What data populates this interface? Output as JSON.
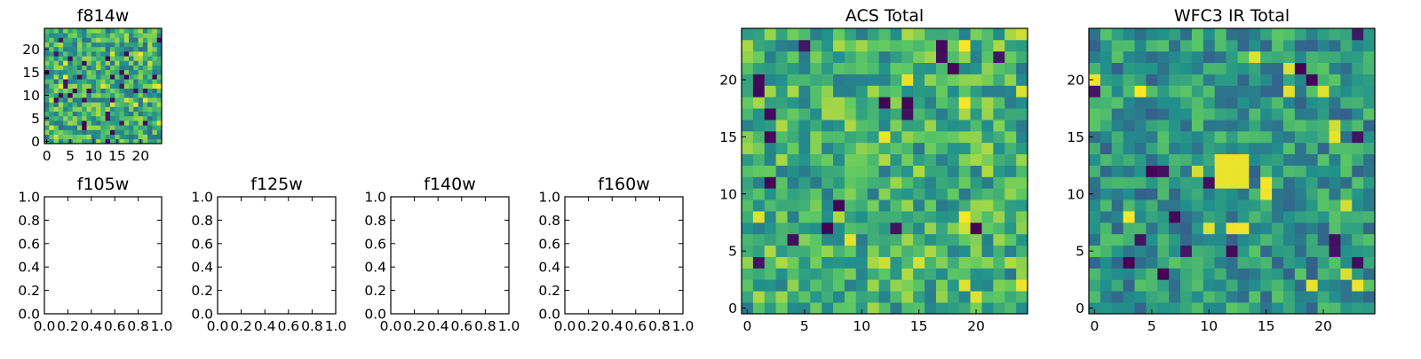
{
  "colormap": [
    "#440154",
    "#3b528b",
    "#21918c",
    "#5ec962",
    "#fde725"
  ],
  "chart_data": [
    {
      "id": "f814w",
      "type": "heatmap",
      "title": "f814w",
      "grid": 25,
      "seed": 814,
      "bias": 0.62,
      "spread": 0.26,
      "xlim": [
        -0.5,
        24.5
      ],
      "ylim": [
        -0.5,
        24.5
      ],
      "xticks": [
        "0",
        "5",
        "10",
        "15",
        "20"
      ],
      "yticks": [
        "0",
        "5",
        "10",
        "15",
        "20"
      ]
    },
    {
      "id": "f105w",
      "type": "empty",
      "title": "f105w",
      "xticks": [
        "0.0",
        "0.2",
        "0.4",
        "0.6",
        "0.8",
        "1.0"
      ],
      "yticks": [
        "0.0",
        "0.2",
        "0.4",
        "0.6",
        "0.8",
        "1.0"
      ]
    },
    {
      "id": "f125w",
      "type": "empty",
      "title": "f125w",
      "xticks": [
        "0.0",
        "0.2",
        "0.4",
        "0.6",
        "0.8",
        "1.0"
      ],
      "yticks": [
        "0.0",
        "0.2",
        "0.4",
        "0.6",
        "0.8",
        "1.0"
      ]
    },
    {
      "id": "f140w",
      "type": "empty",
      "title": "f140w",
      "xticks": [
        "0.0",
        "0.2",
        "0.4",
        "0.6",
        "0.8",
        "1.0"
      ],
      "yticks": [
        "0.0",
        "0.2",
        "0.4",
        "0.6",
        "0.8",
        "1.0"
      ]
    },
    {
      "id": "f160w",
      "type": "empty",
      "title": "f160w",
      "xticks": [
        "0.0",
        "0.2",
        "0.4",
        "0.6",
        "0.8",
        "1.0"
      ],
      "yticks": [
        "0.0",
        "0.2",
        "0.4",
        "0.6",
        "0.8",
        "1.0"
      ]
    },
    {
      "id": "acs-total",
      "type": "heatmap",
      "title": "ACS Total",
      "grid": 25,
      "seed": 2024,
      "bias": 0.64,
      "spread": 0.24,
      "xlim": [
        -0.5,
        24.5
      ],
      "ylim": [
        -0.5,
        24.5
      ],
      "xticks": [
        "0",
        "5",
        "10",
        "15",
        "20"
      ],
      "yticks": [
        "0",
        "5",
        "10",
        "15",
        "20"
      ]
    },
    {
      "id": "wfc3-ir-total",
      "type": "heatmap",
      "title": "WFC3 IR Total",
      "grid": 25,
      "seed": 3160,
      "bias": 0.52,
      "spread": 0.22,
      "xlim": [
        -0.5,
        24.5
      ],
      "ylim": [
        -0.5,
        24.5
      ],
      "hotspot": {
        "x": 12,
        "y": 12,
        "radius": 1.6
      },
      "xticks": [
        "0",
        "5",
        "10",
        "15",
        "20"
      ],
      "yticks": [
        "0",
        "5",
        "10",
        "15",
        "20"
      ]
    }
  ]
}
